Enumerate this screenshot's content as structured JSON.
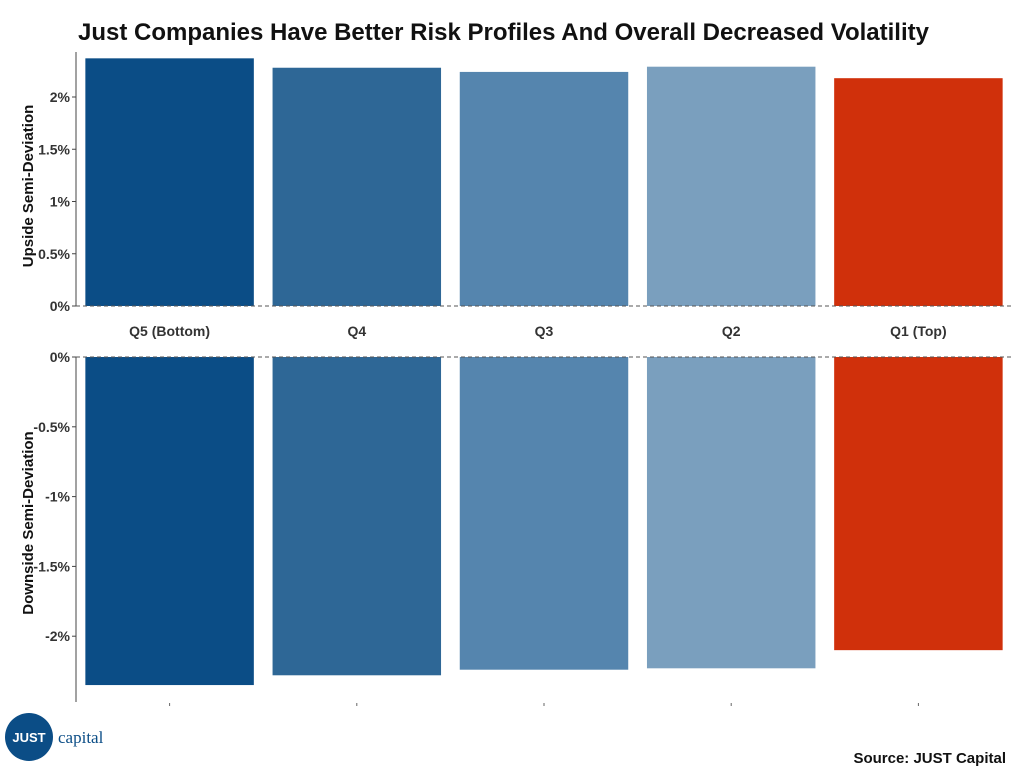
{
  "chart_data": {
    "type": "bar",
    "title": "Just Companies Have Better Risk Profiles And Overall Decreased Volatility",
    "categories": [
      "Q5 (Bottom)",
      "Q4",
      "Q3",
      "Q2",
      "Q1 (Top)"
    ],
    "colors": [
      "#0b4d86",
      "#2e6796",
      "#5585ae",
      "#7a9fbe",
      "#d0300b"
    ],
    "panels": [
      {
        "name": "upside",
        "ylabel": "Upside Semi-Deviation",
        "ylim": [
          0,
          2.4
        ],
        "ticks": [
          0,
          0.5,
          1,
          1.5,
          2
        ],
        "tick_labels": [
          "0%",
          "0.5%",
          "1%",
          "1.5%",
          "2%"
        ],
        "values": [
          2.37,
          2.28,
          2.24,
          2.29,
          2.18
        ]
      },
      {
        "name": "downside",
        "ylabel": "Downside Semi-Deviation",
        "ylim": [
          -2.4,
          0
        ],
        "ticks": [
          0,
          -0.5,
          -1,
          -1.5,
          -2
        ],
        "tick_labels": [
          "0%",
          "-0.5%",
          "-1%",
          "-1.5%",
          "-2%"
        ],
        "values": [
          -2.35,
          -2.28,
          -2.24,
          -2.23,
          -2.1
        ]
      }
    ]
  },
  "logo": {
    "badge": "JUST",
    "text": "capital"
  },
  "source": "Source: JUST Capital"
}
